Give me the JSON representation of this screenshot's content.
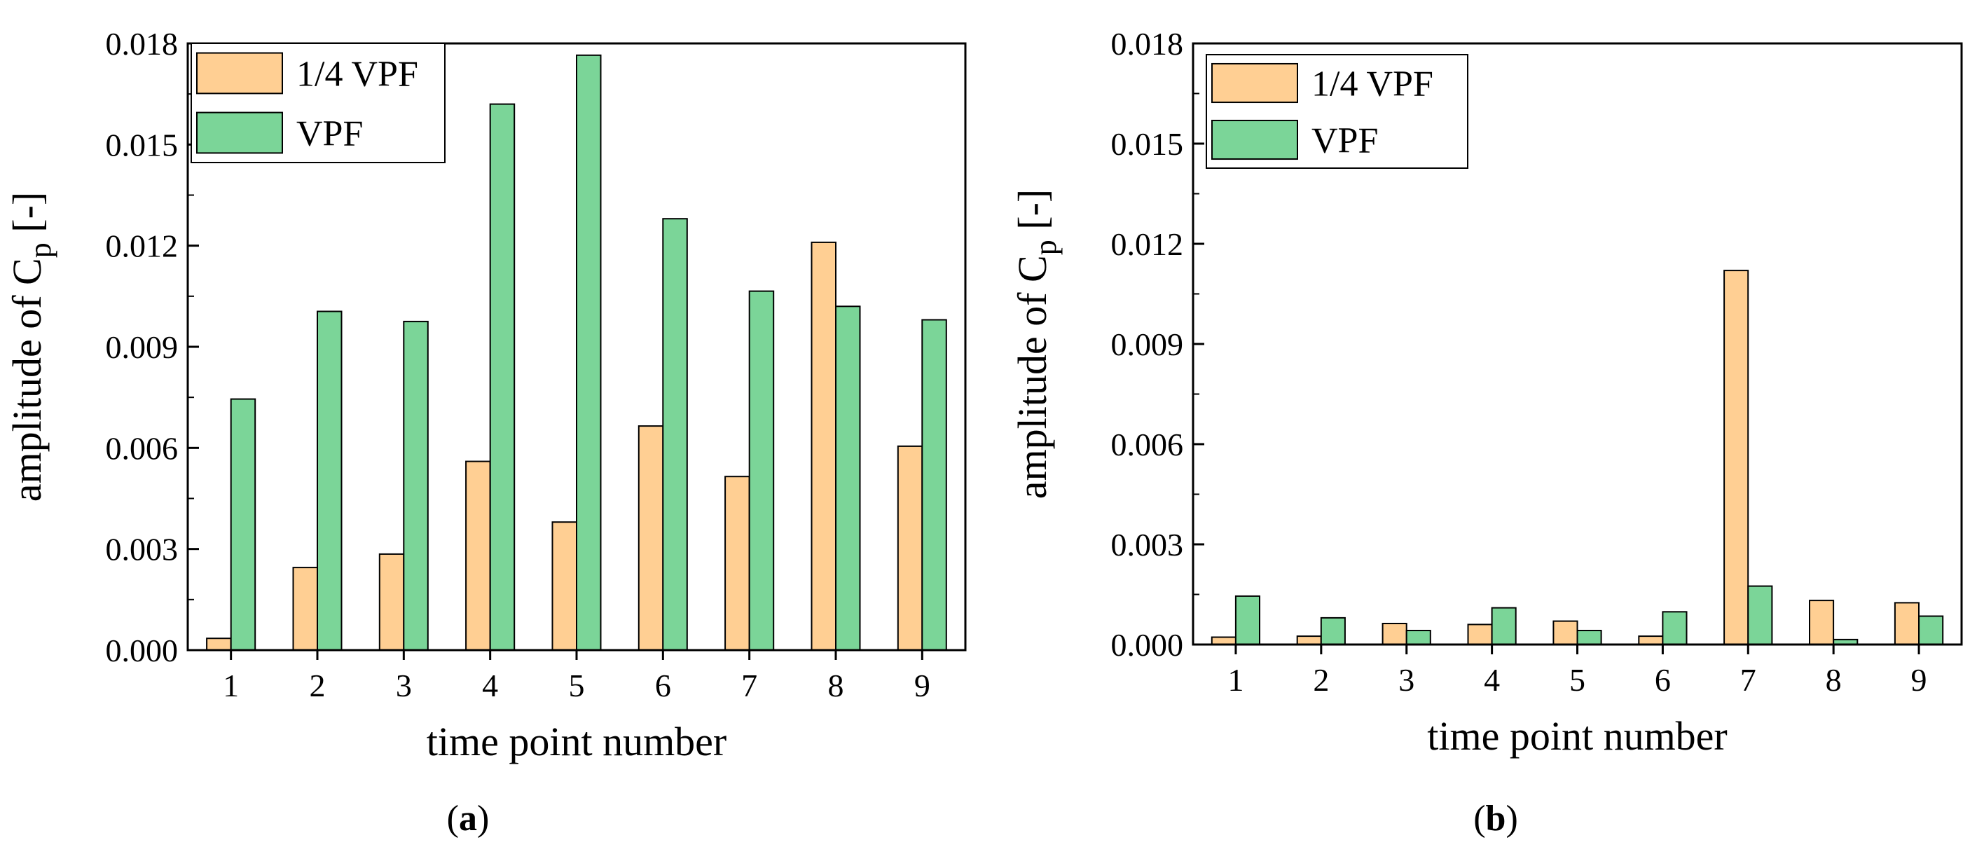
{
  "colors": {
    "quarter_vpf": "#FFCF93",
    "vpf": "#7BD598",
    "axis": "#000000"
  },
  "chart_data": [
    {
      "type": "bar",
      "panel": "a",
      "caption": {
        "open": "(",
        "letter": "a",
        "close": ")"
      },
      "categories": [
        "1",
        "2",
        "3",
        "4",
        "5",
        "6",
        "7",
        "8",
        "9"
      ],
      "series": [
        {
          "name": "1/4 VPF",
          "values": [
            0.00035,
            0.00245,
            0.00285,
            0.0056,
            0.0038,
            0.00665,
            0.00515,
            0.0121,
            0.00605
          ]
        },
        {
          "name": "VPF",
          "values": [
            0.00745,
            0.01005,
            0.00975,
            0.0162,
            0.01765,
            0.0128,
            0.01065,
            0.0102,
            0.0098
          ]
        }
      ],
      "xlabel": "time point number",
      "ylabel": {
        "prefix": "amplitude of C",
        "sub": "p",
        "suffix": " [-]"
      },
      "ylim": [
        0,
        0.018
      ],
      "yticks": [
        "0.000",
        "0.003",
        "0.006",
        "0.009",
        "0.012",
        "0.015",
        "0.018"
      ],
      "legend_position": "top-left"
    },
    {
      "type": "bar",
      "panel": "b",
      "caption": {
        "open": "(",
        "letter": "b",
        "close": ")"
      },
      "categories": [
        "1",
        "2",
        "3",
        "4",
        "5",
        "6",
        "7",
        "8",
        "9"
      ],
      "series": [
        {
          "name": "1/4 VPF",
          "values": [
            0.00022,
            0.00025,
            0.00063,
            0.0006,
            0.0007,
            0.00025,
            0.0112,
            0.00132,
            0.00125
          ]
        },
        {
          "name": "VPF",
          "values": [
            0.00145,
            0.0008,
            0.00042,
            0.0011,
            0.00042,
            0.00098,
            0.00175,
            0.00015,
            0.00085
          ]
        }
      ],
      "xlabel": "time point number",
      "ylabel": {
        "prefix": "amplitude of C",
        "sub": "p",
        "suffix": " [-]"
      },
      "ylim": [
        0,
        0.018
      ],
      "yticks": [
        "0.000",
        "0.003",
        "0.006",
        "0.009",
        "0.012",
        "0.015",
        "0.018"
      ],
      "legend_position": "top-left"
    }
  ]
}
